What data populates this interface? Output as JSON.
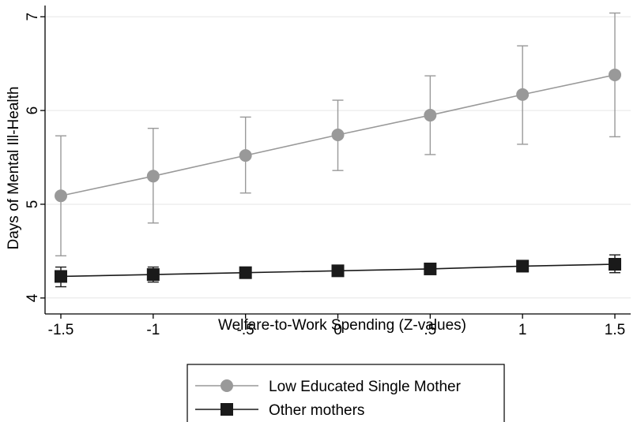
{
  "chart_data": {
    "type": "line",
    "xlabel": "Welfare-to-Work Spending (Z-values)",
    "ylabel": "Days of Mental Ill-Health",
    "x": [
      -1.5,
      -1,
      -0.5,
      0,
      0.5,
      1,
      1.5
    ],
    "x_tick_labels": [
      "-1.5",
      "-1",
      "-.5",
      "0",
      ".5",
      "1",
      "1.5"
    ],
    "y_ticks": [
      4,
      5,
      6,
      7
    ],
    "y_tick_labels": [
      "4",
      "5",
      "6",
      "7"
    ],
    "xlim": [
      -1.5,
      1.5
    ],
    "ylim": [
      3.83,
      7.12
    ],
    "grid": true,
    "legend_position": "bottom",
    "series": [
      {
        "name": "Low Educated Single Mother",
        "color": "#999999",
        "marker": "circle",
        "values": [
          5.09,
          5.3,
          5.52,
          5.74,
          5.95,
          6.17,
          6.38
        ],
        "ci_low": [
          4.45,
          4.8,
          5.12,
          5.36,
          5.53,
          5.64,
          5.72
        ],
        "ci_high": [
          5.73,
          5.81,
          5.93,
          6.11,
          6.37,
          6.69,
          7.04
        ]
      },
      {
        "name": "Other mothers",
        "color": "#1a1a1a",
        "marker": "square",
        "values": [
          4.23,
          4.25,
          4.27,
          4.29,
          4.31,
          4.34,
          4.36
        ],
        "ci_low": [
          4.12,
          4.17,
          4.22,
          4.25,
          4.27,
          4.28,
          4.27
        ],
        "ci_high": [
          4.33,
          4.33,
          4.32,
          4.33,
          4.35,
          4.39,
          4.46
        ]
      }
    ]
  }
}
